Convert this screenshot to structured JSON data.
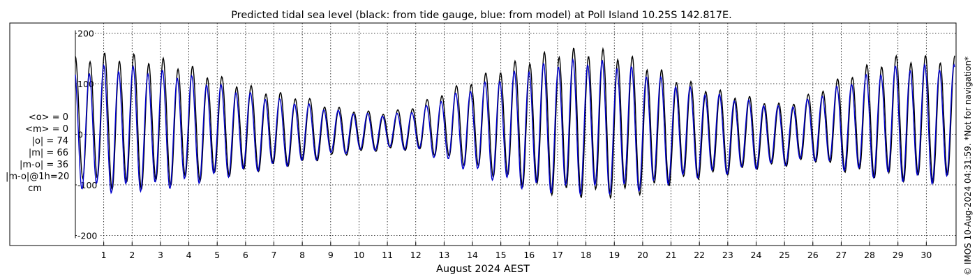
{
  "chart_data": {
    "type": "line",
    "title": "Predicted tidal sea level (black: from tide gauge, blue: from model) at Poll Island 10.25S 142.817E.",
    "xlabel": "August 2024 AEST",
    "ylabel": "",
    "xlim": [
      0,
      31
    ],
    "ylim": [
      -220,
      220
    ],
    "grid": true,
    "y_ticks": [
      -200,
      -100,
      0,
      100,
      200
    ],
    "x_ticks": [
      1,
      2,
      3,
      4,
      5,
      6,
      7,
      8,
      9,
      10,
      11,
      12,
      13,
      14,
      15,
      16,
      17,
      18,
      19,
      20,
      21,
      22,
      23,
      24,
      25,
      26,
      27,
      28,
      29,
      30
    ],
    "x_tick_labels": [
      "1",
      "2",
      "3",
      "4",
      "5",
      "6",
      "7",
      "8",
      "9",
      "10",
      "11",
      "12",
      "13",
      "14",
      "15",
      "16",
      "17",
      "18",
      "19",
      "20",
      "21",
      "22",
      "23",
      "24",
      "25",
      "26",
      "27",
      "28",
      "29",
      "30"
    ],
    "series": [
      {
        "name": "from tide gauge",
        "color": "#000000",
        "daily_max": [
          175,
          185,
          183,
          175,
          158,
          135,
          115,
          98,
          88,
          65,
          55,
          50,
          65,
          98,
          125,
          155,
          178,
          195,
          198,
          193,
          170,
          138,
          115,
          98,
          85,
          70,
          95,
          130,
          160,
          178,
          178
        ],
        "daily_min": [
          -100,
          -133,
          -135,
          -128,
          -117,
          -105,
          -95,
          -80,
          -72,
          -55,
          -45,
          -38,
          -40,
          -60,
          -85,
          -110,
          -133,
          -148,
          -152,
          -152,
          -142,
          -120,
          -105,
          -95,
          -82,
          -75,
          -65,
          -90,
          -105,
          -115,
          -118
        ]
      },
      {
        "name": "from model",
        "color": "#0000cc",
        "daily_max": [
          148,
          160,
          158,
          150,
          138,
          118,
          100,
          85,
          75,
          58,
          50,
          45,
          55,
          85,
          110,
          135,
          158,
          170,
          175,
          168,
          150,
          125,
          105,
          90,
          78,
          65,
          85,
          115,
          140,
          158,
          160
        ],
        "daily_min": [
          -125,
          -138,
          -135,
          -130,
          -120,
          -105,
          -92,
          -78,
          -70,
          -50,
          -42,
          -35,
          -38,
          -65,
          -90,
          -115,
          -132,
          -140,
          -142,
          -140,
          -132,
          -115,
          -100,
          -92,
          -80,
          -72,
          -62,
          -85,
          -102,
          -112,
          -118
        ]
      }
    ]
  },
  "stats": {
    "mean_obs": "<o> = 0",
    "mean_model": "<m> = 0",
    "abs_obs": "|o| = 74",
    "abs_model": "|m| = 66",
    "abs_diff": "|m-o| = 36",
    "abs_diff_1h": "|m-o|@1h=20",
    "unit": "cm"
  },
  "copyright": "© IMOS 10-Aug-2024 04:31:59. *Not for navigation*"
}
